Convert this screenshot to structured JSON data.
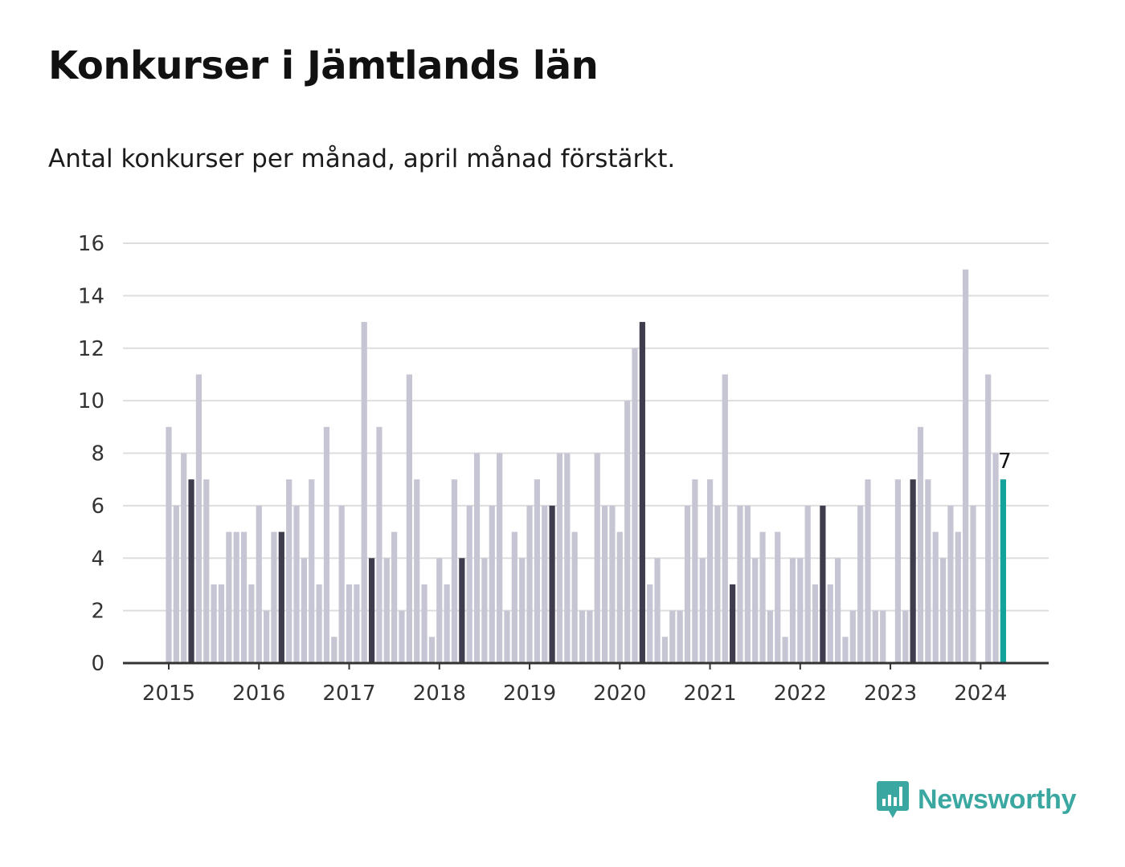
{
  "header": {
    "title": "Konkurser i Jämtlands län",
    "subtitle": "Antal konkurser per månad, april månad förstärkt."
  },
  "brand": {
    "name": "Newsworthy",
    "icon": "newsworthy-logo-icon"
  },
  "colors": {
    "bar": "#c6c5d3",
    "april": "#3f3d4d",
    "latest": "#13a39c",
    "grid": "#dddddd",
    "axis": "#333333"
  },
  "chart_data": {
    "type": "bar",
    "title": "Konkurser i Jämtlands län",
    "subtitle": "Antal konkurser per månad, april månad förstärkt.",
    "xlabel": "",
    "ylabel": "",
    "ylim": [
      0,
      16
    ],
    "yticks": [
      0,
      2,
      4,
      6,
      8,
      10,
      12,
      14,
      16
    ],
    "xticks": [
      "2015",
      "2016",
      "2017",
      "2018",
      "2019",
      "2020",
      "2021",
      "2022",
      "2023",
      "2024"
    ],
    "grid": true,
    "start": "2015-01",
    "end": "2024-04",
    "highlight": "april",
    "values": [
      9,
      6,
      8,
      7,
      11,
      7,
      3,
      3,
      5,
      5,
      5,
      3,
      6,
      2,
      5,
      5,
      7,
      6,
      4,
      7,
      3,
      9,
      1,
      6,
      3,
      3,
      13,
      4,
      9,
      4,
      5,
      2,
      11,
      7,
      3,
      1,
      4,
      3,
      7,
      4,
      6,
      8,
      4,
      6,
      8,
      2,
      5,
      4,
      6,
      7,
      6,
      6,
      8,
      8,
      5,
      2,
      2,
      8,
      6,
      6,
      5,
      10,
      12,
      13,
      3,
      4,
      1,
      2,
      2,
      6,
      7,
      4,
      7,
      6,
      11,
      3,
      6,
      6,
      4,
      5,
      2,
      5,
      1,
      4,
      4,
      6,
      3,
      6,
      3,
      4,
      1,
      2,
      6,
      7,
      2,
      2,
      0,
      7,
      2,
      7,
      9,
      7,
      5,
      4,
      6,
      5,
      15,
      6,
      0,
      11,
      8,
      7
    ],
    "annotations": [
      {
        "month": "2024-04",
        "label": "7"
      }
    ]
  }
}
